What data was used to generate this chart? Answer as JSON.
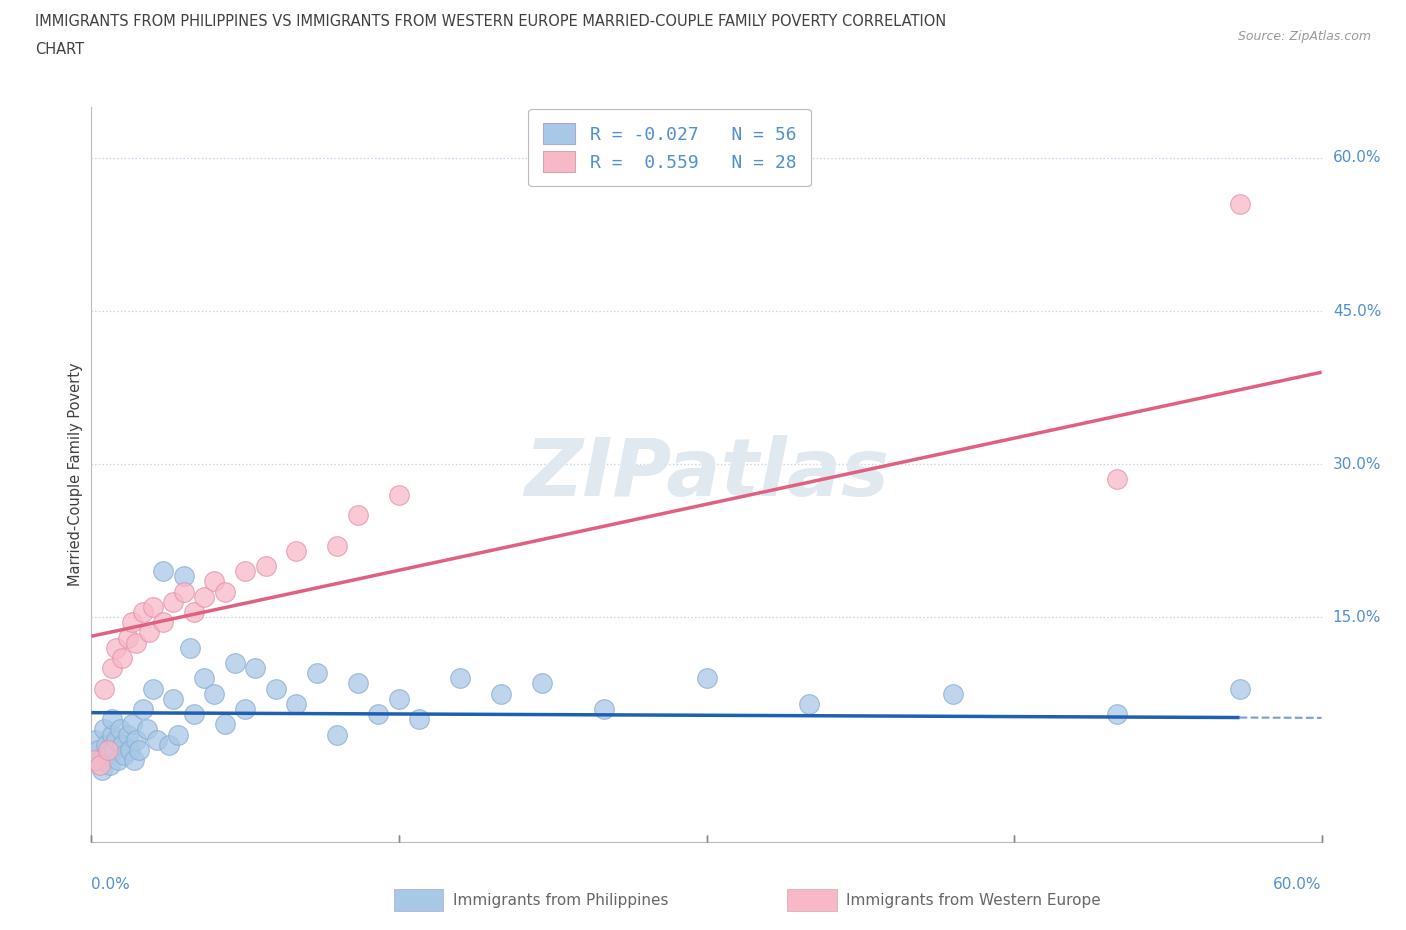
{
  "title_line1": "IMMIGRANTS FROM PHILIPPINES VS IMMIGRANTS FROM WESTERN EUROPE MARRIED-COUPLE FAMILY POVERTY CORRELATION",
  "title_line2": "CHART",
  "source": "Source: ZipAtlas.com",
  "ylabel": "Married-Couple Family Poverty",
  "y_tick_labels": [
    "15.0%",
    "30.0%",
    "45.0%",
    "60.0%"
  ],
  "y_tick_values": [
    0.15,
    0.3,
    0.45,
    0.6
  ],
  "xlim": [
    0.0,
    0.6
  ],
  "ylim": [
    -0.07,
    0.65
  ],
  "series1_label": "Immigrants from Philippines",
  "series2_label": "Immigrants from Western Europe",
  "series1_color": "#a8c8e8",
  "series2_color": "#f8b8c8",
  "series1_edge_color": "#88aacc",
  "series2_edge_color": "#e090a8",
  "series1_line_color": "#2060b0",
  "series2_line_color": "#e06080",
  "series1_R": -0.027,
  "series1_N": 56,
  "series2_R": 0.559,
  "series2_N": 28,
  "background_color": "#ffffff",
  "grid_color": "#c8d4e8",
  "title_color": "#404040",
  "tick_label_color": "#5090d0",
  "watermark_color": "#e0e8f0",
  "philippines_x": [
    0.002,
    0.003,
    0.004,
    0.005,
    0.006,
    0.007,
    0.008,
    0.009,
    0.01,
    0.01,
    0.011,
    0.012,
    0.013,
    0.014,
    0.015,
    0.016,
    0.018,
    0.019,
    0.02,
    0.021,
    0.022,
    0.023,
    0.025,
    0.027,
    0.03,
    0.032,
    0.035,
    0.038,
    0.04,
    0.042,
    0.045,
    0.048,
    0.05,
    0.055,
    0.06,
    0.065,
    0.07,
    0.075,
    0.08,
    0.09,
    0.1,
    0.11,
    0.12,
    0.13,
    0.14,
    0.15,
    0.16,
    0.18,
    0.2,
    0.22,
    0.25,
    0.3,
    0.35,
    0.42,
    0.5,
    0.56
  ],
  "philippines_y": [
    0.03,
    0.02,
    0.01,
    0.0,
    0.04,
    0.025,
    0.015,
    0.005,
    0.035,
    0.05,
    0.02,
    0.03,
    0.01,
    0.04,
    0.025,
    0.015,
    0.035,
    0.02,
    0.045,
    0.01,
    0.03,
    0.02,
    0.06,
    0.04,
    0.08,
    0.03,
    0.195,
    0.025,
    0.07,
    0.035,
    0.19,
    0.12,
    0.055,
    0.09,
    0.075,
    0.045,
    0.105,
    0.06,
    0.1,
    0.08,
    0.065,
    0.095,
    0.035,
    0.085,
    0.055,
    0.07,
    0.05,
    0.09,
    0.075,
    0.085,
    0.06,
    0.09,
    0.065,
    0.075,
    0.055,
    0.08
  ],
  "western_europe_x": [
    0.002,
    0.004,
    0.006,
    0.008,
    0.01,
    0.012,
    0.015,
    0.018,
    0.02,
    0.022,
    0.025,
    0.028,
    0.03,
    0.035,
    0.04,
    0.045,
    0.05,
    0.055,
    0.06,
    0.065,
    0.075,
    0.085,
    0.1,
    0.12,
    0.13,
    0.15,
    0.5,
    0.56
  ],
  "western_europe_y": [
    0.01,
    0.005,
    0.08,
    0.02,
    0.1,
    0.12,
    0.11,
    0.13,
    0.145,
    0.125,
    0.155,
    0.135,
    0.16,
    0.145,
    0.165,
    0.175,
    0.155,
    0.17,
    0.185,
    0.175,
    0.195,
    0.2,
    0.215,
    0.22,
    0.25,
    0.27,
    0.285,
    0.555
  ]
}
